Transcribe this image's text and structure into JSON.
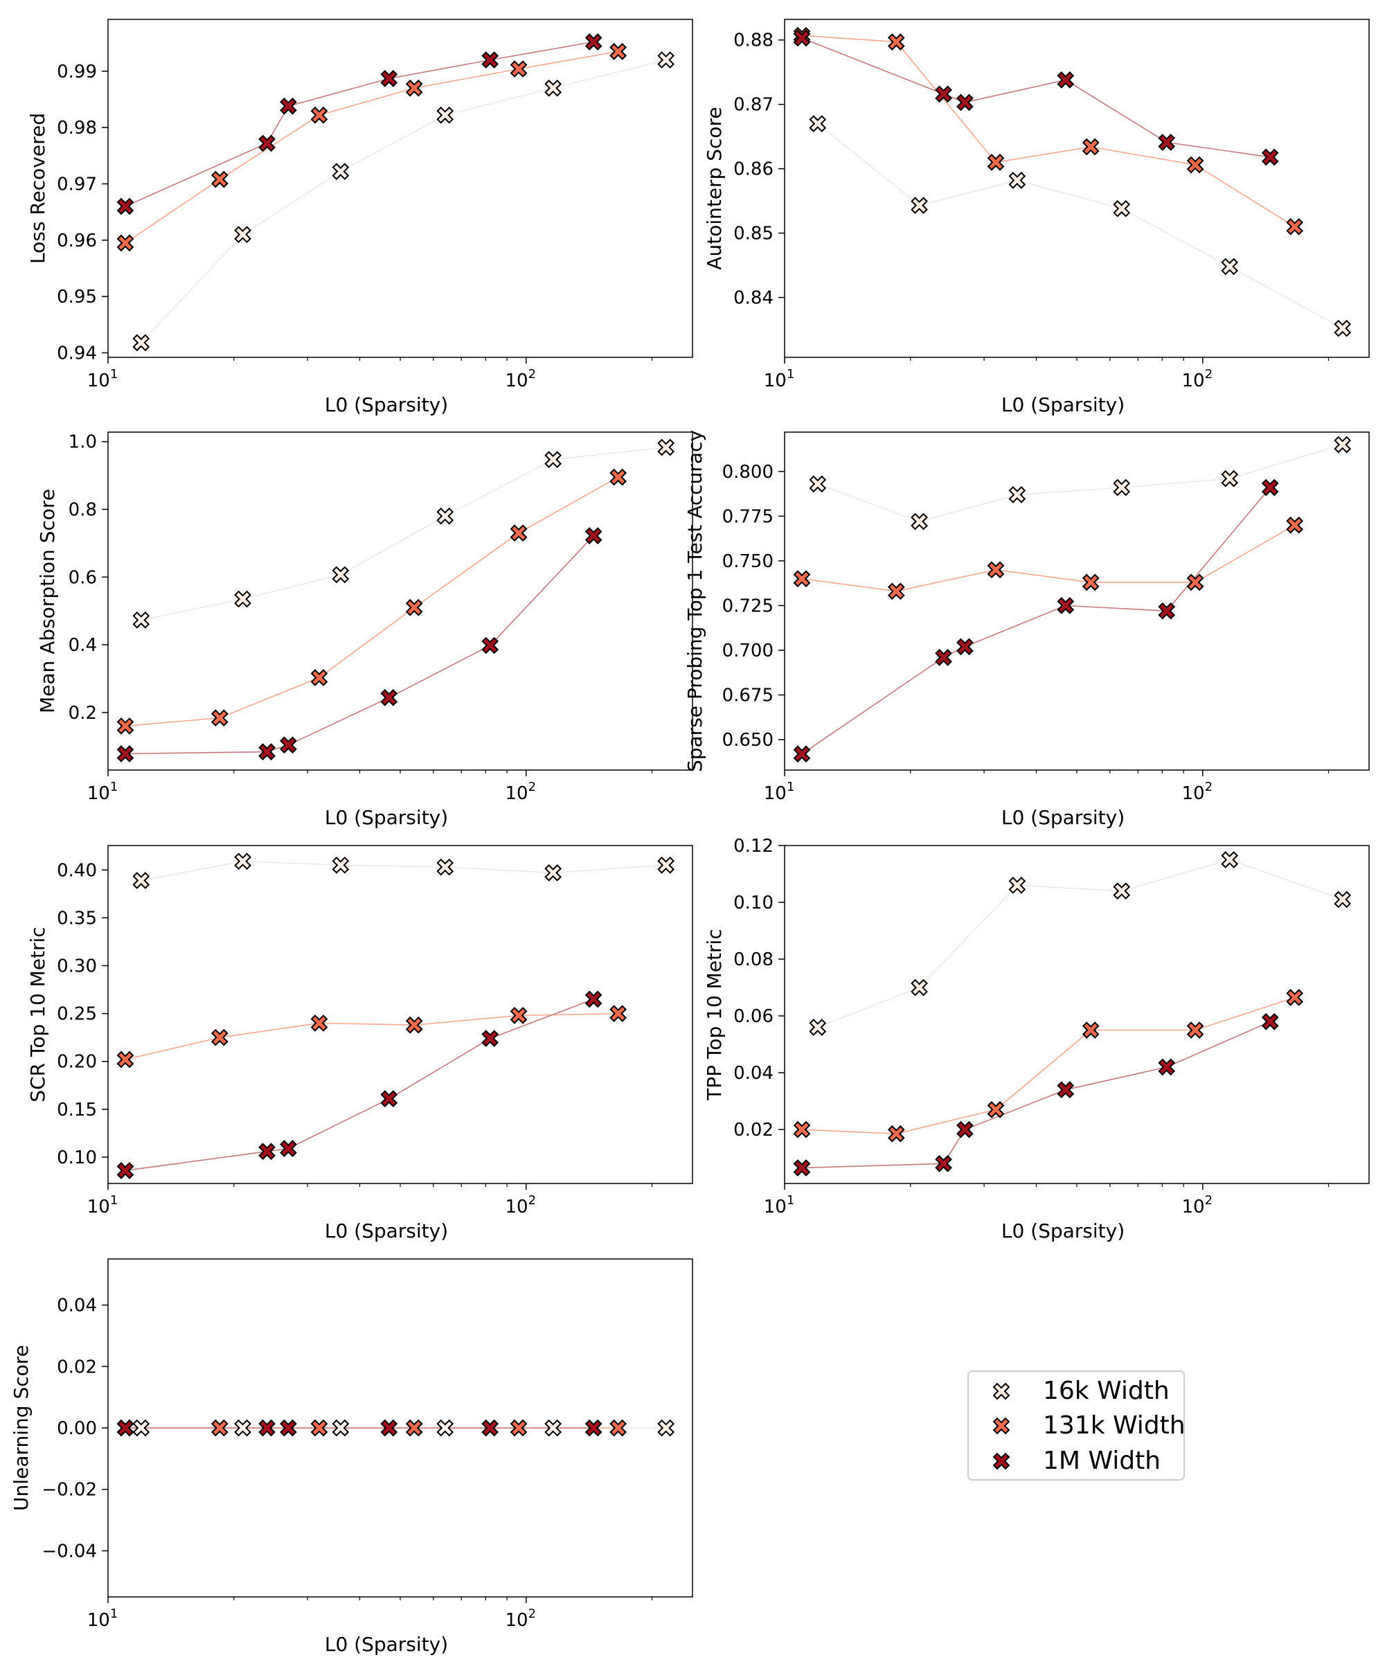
{
  "legend": {
    "entries": [
      {
        "label": "16k Width",
        "color": "#fdeee6"
      },
      {
        "label": "131k Width",
        "color": "#f26a4c"
      },
      {
        "label": "1M Width",
        "color": "#a5101d"
      }
    ]
  },
  "line_colors": [
    "#e8ded9",
    "#f6a88f",
    "#c47a7d"
  ],
  "chart_data": [
    {
      "type": "line",
      "title": "",
      "xlabel": "L0 (Sparsity)",
      "ylabel": "Loss Recovered",
      "xscale": "log",
      "xlim": [
        10,
        250
      ],
      "ylim": [
        0.9392,
        0.9992
      ],
      "xticks": [
        {
          "v": 10,
          "base": "10",
          "exp": "1"
        },
        {
          "v": 100,
          "base": "10",
          "exp": "2"
        }
      ],
      "yticks": [
        0.94,
        0.95,
        0.96,
        0.97,
        0.98,
        0.99
      ],
      "yticklabels": [
        "0.94",
        "0.95",
        "0.96",
        "0.97",
        "0.98",
        "0.99"
      ],
      "series": [
        {
          "name": "16k Width",
          "x": [
            12,
            21,
            36,
            64,
            116,
            216
          ],
          "y": [
            0.9418,
            0.961,
            0.9722,
            0.9822,
            0.987,
            0.992
          ]
        },
        {
          "name": "131k Width",
          "x": [
            11,
            18.5,
            32,
            54,
            96,
            166
          ],
          "y": [
            0.9595,
            0.9708,
            0.9822,
            0.987,
            0.9904,
            0.9935
          ]
        },
        {
          "name": "1M Width",
          "x": [
            11,
            24,
            27,
            47,
            82,
            145
          ],
          "y": [
            0.966,
            0.9772,
            0.9838,
            0.9887,
            0.992,
            0.9952
          ]
        }
      ]
    },
    {
      "type": "line",
      "title": "",
      "xlabel": "L0 (Sparsity)",
      "ylabel": "Autointerp Score",
      "xscale": "log",
      "xlim": [
        10,
        250
      ],
      "ylim": [
        0.8307,
        0.8832
      ],
      "xticks": [
        {
          "v": 10,
          "base": "10",
          "exp": "1"
        },
        {
          "v": 100,
          "base": "10",
          "exp": "2"
        }
      ],
      "yticks": [
        0.84,
        0.85,
        0.86,
        0.87,
        0.88
      ],
      "yticklabels": [
        "0.84",
        "0.85",
        "0.86",
        "0.87",
        "0.88"
      ],
      "series": [
        {
          "name": "16k Width",
          "x": [
            12,
            21,
            36,
            64,
            116,
            216
          ],
          "y": [
            0.867,
            0.8543,
            0.8582,
            0.8538,
            0.8448,
            0.8352
          ]
        },
        {
          "name": "131k Width",
          "x": [
            11,
            18.5,
            32,
            54,
            96,
            166
          ],
          "y": [
            0.8807,
            0.8797,
            0.861,
            0.8634,
            0.8606,
            0.851
          ]
        },
        {
          "name": "1M Width",
          "x": [
            11,
            24,
            27,
            47,
            82,
            145
          ],
          "y": [
            0.8803,
            0.8716,
            0.8703,
            0.8738,
            0.8641,
            0.8618
          ]
        }
      ]
    },
    {
      "type": "line",
      "title": "",
      "xlabel": "L0 (Sparsity)",
      "ylabel": "Mean Absorption Score",
      "xscale": "log",
      "xlim": [
        10,
        250
      ],
      "ylim": [
        0.03,
        1.028
      ],
      "xticks": [
        {
          "v": 10,
          "base": "10",
          "exp": "1"
        },
        {
          "v": 100,
          "base": "10",
          "exp": "2"
        }
      ],
      "yticks": [
        0.2,
        0.4,
        0.6,
        0.8,
        1.0
      ],
      "yticklabels": [
        "0.2",
        "0.4",
        "0.6",
        "0.8",
        "1.0"
      ],
      "series": [
        {
          "name": "16k Width",
          "x": [
            12,
            21,
            36,
            64,
            116,
            216
          ],
          "y": [
            0.473,
            0.535,
            0.607,
            0.78,
            0.947,
            0.983
          ]
        },
        {
          "name": "131k Width",
          "x": [
            11,
            18.5,
            32,
            54,
            96,
            166
          ],
          "y": [
            0.16,
            0.184,
            0.303,
            0.51,
            0.73,
            0.895
          ]
        },
        {
          "name": "1M Width",
          "x": [
            11,
            24,
            27,
            47,
            82,
            145
          ],
          "y": [
            0.078,
            0.084,
            0.104,
            0.244,
            0.398,
            0.722
          ]
        }
      ]
    },
    {
      "type": "line",
      "title": "",
      "xlabel": "L0 (Sparsity)",
      "ylabel": "Sparse Probing Top 1 Test Accuracy",
      "xscale": "log",
      "xlim": [
        10,
        250
      ],
      "ylim": [
        0.633,
        0.822
      ],
      "xticks": [
        {
          "v": 10,
          "base": "10",
          "exp": "1"
        },
        {
          "v": 100,
          "base": "10",
          "exp": "2"
        }
      ],
      "yticks": [
        0.65,
        0.675,
        0.7,
        0.725,
        0.75,
        0.775,
        0.8
      ],
      "yticklabels": [
        "0.650",
        "0.675",
        "0.700",
        "0.725",
        "0.750",
        "0.775",
        "0.800"
      ],
      "series": [
        {
          "name": "16k Width",
          "x": [
            12,
            21,
            36,
            64,
            116,
            216
          ],
          "y": [
            0.793,
            0.772,
            0.787,
            0.791,
            0.796,
            0.815
          ]
        },
        {
          "name": "131k Width",
          "x": [
            11,
            18.5,
            32,
            54,
            96,
            166
          ],
          "y": [
            0.74,
            0.733,
            0.745,
            0.738,
            0.738,
            0.77
          ]
        },
        {
          "name": "1M Width",
          "x": [
            11,
            24,
            27,
            47,
            82,
            145
          ],
          "y": [
            0.642,
            0.696,
            0.702,
            0.725,
            0.722,
            0.791
          ]
        }
      ]
    },
    {
      "type": "line",
      "title": "",
      "xlabel": "L0 (Sparsity)",
      "ylabel": "SCR Top 10 Metric",
      "xscale": "log",
      "xlim": [
        10,
        250
      ],
      "ylim": [
        0.0725,
        0.4255
      ],
      "xticks": [
        {
          "v": 10,
          "base": "10",
          "exp": "1"
        },
        {
          "v": 100,
          "base": "10",
          "exp": "2"
        }
      ],
      "yticks": [
        0.1,
        0.15,
        0.2,
        0.25,
        0.3,
        0.35,
        0.4
      ],
      "yticklabels": [
        "0.10",
        "0.15",
        "0.20",
        "0.25",
        "0.30",
        "0.35",
        "0.40"
      ],
      "series": [
        {
          "name": "16k Width",
          "x": [
            12,
            21,
            36,
            64,
            116,
            216
          ],
          "y": [
            0.389,
            0.409,
            0.405,
            0.403,
            0.397,
            0.405
          ]
        },
        {
          "name": "131k Width",
          "x": [
            11,
            18.5,
            32,
            54,
            96,
            166
          ],
          "y": [
            0.202,
            0.225,
            0.24,
            0.238,
            0.248,
            0.25
          ]
        },
        {
          "name": "1M Width",
          "x": [
            11,
            24,
            27,
            47,
            82,
            145
          ],
          "y": [
            0.086,
            0.106,
            0.109,
            0.161,
            0.224,
            0.265
          ]
        }
      ]
    },
    {
      "type": "line",
      "title": "",
      "xlabel": "L0 (Sparsity)",
      "ylabel": "TPP Top 10 Metric",
      "xscale": "log",
      "xlim": [
        10,
        250
      ],
      "ylim": [
        0.001,
        0.12
      ],
      "xticks": [
        {
          "v": 10,
          "base": "10",
          "exp": "1"
        },
        {
          "v": 100,
          "base": "10",
          "exp": "2"
        }
      ],
      "yticks": [
        0.02,
        0.04,
        0.06,
        0.08,
        0.1,
        0.12
      ],
      "yticklabels": [
        "0.02",
        "0.04",
        "0.06",
        "0.08",
        "0.10",
        "0.12"
      ],
      "series": [
        {
          "name": "16k Width",
          "x": [
            12,
            21,
            36,
            64,
            116,
            216
          ],
          "y": [
            0.056,
            0.07,
            0.106,
            0.104,
            0.115,
            0.101
          ]
        },
        {
          "name": "131k Width",
          "x": [
            11,
            18.5,
            32,
            54,
            96,
            166
          ],
          "y": [
            0.02,
            0.0185,
            0.027,
            0.055,
            0.055,
            0.0665
          ]
        },
        {
          "name": "1M Width",
          "x": [
            11,
            24,
            27,
            47,
            82,
            145
          ],
          "y": [
            0.0065,
            0.008,
            0.02,
            0.034,
            0.042,
            0.058
          ]
        }
      ]
    },
    {
      "type": "line",
      "title": "",
      "xlabel": "L0 (Sparsity)",
      "ylabel": "Unlearning Score",
      "xscale": "log",
      "xlim": [
        10,
        250
      ],
      "ylim": [
        -0.055,
        0.055
      ],
      "xticks": [
        {
          "v": 10,
          "base": "10",
          "exp": "1"
        },
        {
          "v": 100,
          "base": "10",
          "exp": "2"
        }
      ],
      "yticks": [
        -0.04,
        -0.02,
        0.0,
        0.02,
        0.04
      ],
      "yticklabels": [
        "−0.04",
        "−0.02",
        "0.00",
        "0.02",
        "0.04"
      ],
      "series": [
        {
          "name": "16k Width",
          "x": [
            12,
            21,
            36,
            64,
            116,
            216
          ],
          "y": [
            0,
            0,
            0,
            0,
            0,
            0
          ]
        },
        {
          "name": "131k Width",
          "x": [
            11,
            18.5,
            32,
            54,
            96,
            166
          ],
          "y": [
            0,
            0,
            0,
            0,
            0,
            0
          ]
        },
        {
          "name": "1M Width",
          "x": [
            11,
            24,
            27,
            47,
            82,
            145
          ],
          "y": [
            0,
            0,
            0,
            0,
            0,
            0
          ]
        }
      ]
    }
  ]
}
